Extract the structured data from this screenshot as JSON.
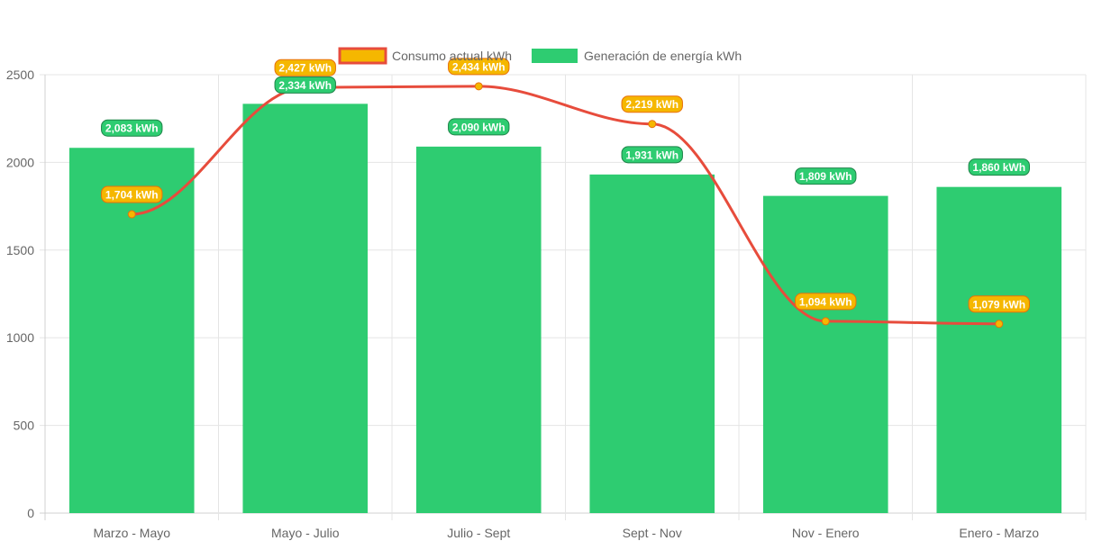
{
  "colors": {
    "bar_fill": "#2ecc71",
    "line_stroke": "#e74c3c",
    "point_fill": "#f5b700",
    "line_label_fill": "#f5b700",
    "line_label_border": "#e8710a",
    "bar_label_fill": "#2ecc71",
    "bar_label_border": "#1e8449"
  },
  "chart_data": {
    "type": "bar",
    "categories": [
      "Marzo - Mayo",
      "Mayo - Julio",
      "Julio - Sept",
      "Sept - Nov",
      "Nov - Enero",
      "Enero - Marzo"
    ],
    "series": [
      {
        "name": "Consumo actual kWh",
        "type": "line",
        "values": [
          1704,
          2427,
          2434,
          2219,
          1094,
          1079
        ],
        "labels": [
          "1,704 kWh",
          "2,427 kWh",
          "2,434 kWh",
          "2,219 kWh",
          "1,094 kWh",
          "1,079 kWh"
        ]
      },
      {
        "name": "Generación de energía kWh",
        "type": "bar",
        "values": [
          2083,
          2334,
          2090,
          1931,
          1809,
          1860
        ],
        "labels": [
          "2,083 kWh",
          "2,334 kWh",
          "2,090 kWh",
          "1,931 kWh",
          "1,809 kWh",
          "1,860 kWh"
        ]
      }
    ],
    "ylim": [
      0,
      2500
    ],
    "yticks": [
      "0",
      "500",
      "1000",
      "1500",
      "2000",
      "2500"
    ],
    "ytick_values": [
      0,
      500,
      1000,
      1500,
      2000,
      2500
    ],
    "grid": true,
    "legend_position": "top"
  }
}
